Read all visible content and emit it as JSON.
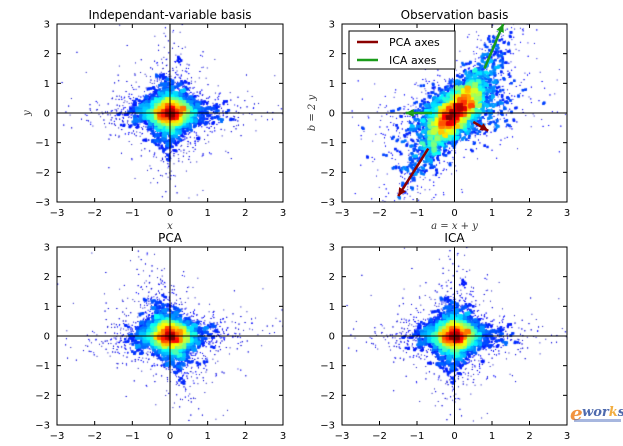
{
  "chart_data": [
    {
      "type": "scatter",
      "title": "Independant-variable basis",
      "xlabel": "x",
      "ylabel": "y",
      "xlim": [
        -3,
        3
      ],
      "ylim": [
        -3,
        3
      ],
      "xticks": [
        "−3",
        "−2",
        "−1",
        "0",
        "1",
        "2",
        "3"
      ],
      "yticks": [
        "−3",
        "−2",
        "−1",
        "0",
        "1",
        "2",
        "3"
      ],
      "colormap": "jet density",
      "transform": [
        [
          1,
          0
        ],
        [
          0,
          1
        ]
      ]
    },
    {
      "type": "scatter",
      "title": "Observation basis",
      "xlabel": "a = x + y",
      "ylabel": "b = 2 y",
      "xlim": [
        -3,
        3
      ],
      "ylim": [
        -3,
        3
      ],
      "xticks": [
        "−3",
        "−2",
        "−1",
        "0",
        "1",
        "2",
        "3"
      ],
      "yticks": [
        "−3",
        "−2",
        "−1",
        "0",
        "1",
        "2",
        "3"
      ],
      "colormap": "jet density",
      "transform": [
        [
          1,
          1
        ],
        [
          0,
          2
        ]
      ],
      "legend": {
        "position": "top-left",
        "entries": [
          {
            "name": "PCA axes",
            "color": "#8b0000"
          },
          {
            "name": "ICA axes",
            "color": "#1a9c1a"
          }
        ]
      },
      "arrows": [
        {
          "series": "PCA axes",
          "from": [
            -0.7,
            -1.2
          ],
          "to": [
            -1.5,
            -2.8
          ]
        },
        {
          "series": "PCA axes",
          "from": [
            0.5,
            -0.3
          ],
          "to": [
            0.9,
            -0.6
          ]
        },
        {
          "series": "ICA axes",
          "from": [
            0.8,
            1.5
          ],
          "to": [
            1.3,
            3.0
          ]
        },
        {
          "series": "ICA axes",
          "from": [
            -0.6,
            0.0
          ],
          "to": [
            -1.3,
            0.0
          ]
        }
      ]
    },
    {
      "type": "scatter",
      "title": "PCA",
      "xlabel": "",
      "ylabel": "",
      "xlim": [
        -3,
        3
      ],
      "ylim": [
        -3,
        3
      ],
      "xticks": [
        "−3",
        "−2",
        "−1",
        "0",
        "1",
        "2",
        "3"
      ],
      "yticks": [
        "−3",
        "−2",
        "−1",
        "0",
        "1",
        "2",
        "3"
      ],
      "colormap": "jet density",
      "transform": [
        [
          1,
          -0.25
        ],
        [
          0.12,
          1
        ]
      ]
    },
    {
      "type": "scatter",
      "title": "ICA",
      "xlabel": "",
      "ylabel": "",
      "xlim": [
        -3,
        3
      ],
      "ylim": [
        -3,
        3
      ],
      "xticks": [
        "−3",
        "−2",
        "−1",
        "0",
        "1",
        "2",
        "3"
      ],
      "yticks": [
        "−3",
        "−2",
        "−1",
        "0",
        "1",
        "2",
        "3"
      ],
      "colormap": "jet density",
      "transform": [
        [
          1,
          0
        ],
        [
          0,
          1
        ]
      ]
    }
  ],
  "watermark": "e-works"
}
